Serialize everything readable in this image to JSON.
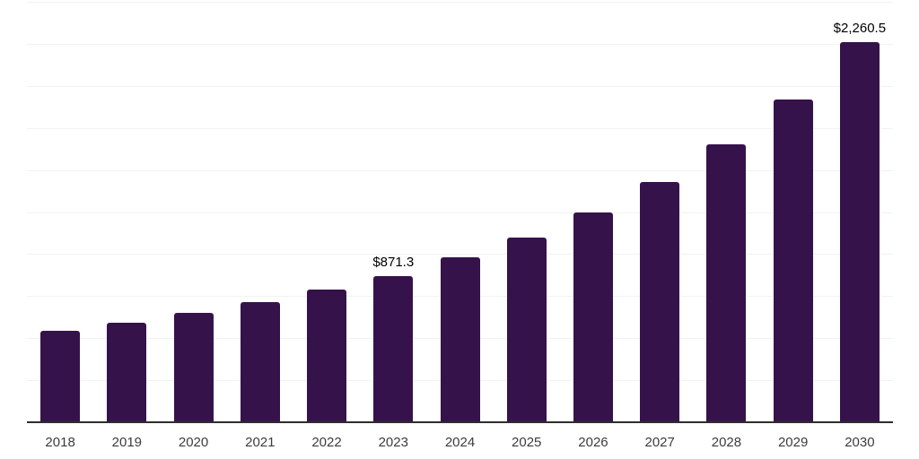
{
  "chart_data": {
    "type": "bar",
    "title": "",
    "xlabel": "",
    "ylabel": "",
    "categories": [
      "2018",
      "2019",
      "2020",
      "2021",
      "2022",
      "2023",
      "2024",
      "2025",
      "2026",
      "2027",
      "2028",
      "2029",
      "2030"
    ],
    "values": [
      544,
      592,
      650,
      714,
      789,
      871.3,
      981,
      1098,
      1248,
      1429,
      1653,
      1919,
      2260.5
    ],
    "value_labels": [
      "",
      "",
      "",
      "",
      "",
      "$871.3",
      "",
      "",
      "",
      "",
      "",
      "",
      "$2,260.5"
    ],
    "ylim": [
      0,
      2500
    ],
    "grid_step": 250,
    "grid": true,
    "legend": false,
    "colors": {
      "bar": "#36124b",
      "gridline": "#f2f2f2",
      "axis_line": "#2e2e2e",
      "tick_label": "#3c3c3c",
      "value_label": "#000000",
      "background": "#ffffff"
    }
  }
}
